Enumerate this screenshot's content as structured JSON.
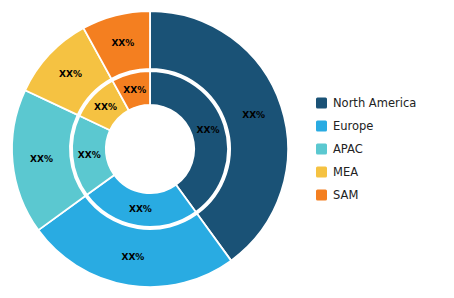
{
  "chart_data": {
    "type": "donut",
    "categories": [
      "North America",
      "Europe",
      "APAC",
      "MEA",
      "SAM"
    ],
    "values": [
      40,
      25,
      17,
      10,
      8
    ],
    "colors": [
      "#1a5276",
      "#29abe2",
      "#5bc8d0",
      "#f5c242",
      "#f47f20"
    ],
    "data_labels": true,
    "value_labels": [
      "XX%",
      "XX%",
      "XX%",
      "XX%",
      "XX%"
    ],
    "legend": "right"
  }
}
